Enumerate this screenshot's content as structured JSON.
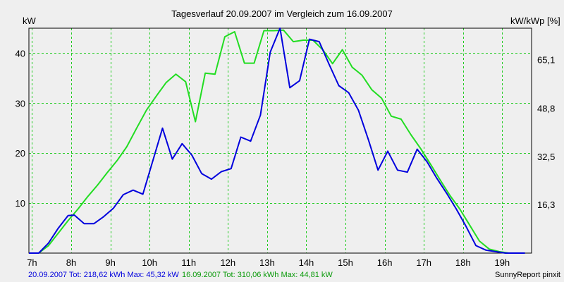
{
  "chart_data": {
    "type": "line",
    "title": "Tagesverlauf 20.09.2007 im Vergleich zum 16.09.2007",
    "ylabel_left": "kW",
    "ylabel_right": "kW/kWp [%]",
    "xlim": [
      6.92,
      19.75
    ],
    "ylim": [
      0,
      45
    ],
    "x_ticks": [
      {
        "value": 7,
        "label": "7h"
      },
      {
        "value": 8,
        "label": "8h"
      },
      {
        "value": 9,
        "label": "9h"
      },
      {
        "value": 10,
        "label": "10h"
      },
      {
        "value": 11,
        "label": "11h"
      },
      {
        "value": 12,
        "label": "12h"
      },
      {
        "value": 13,
        "label": "13h"
      },
      {
        "value": 14,
        "label": "14h"
      },
      {
        "value": 15,
        "label": "15h"
      },
      {
        "value": 16,
        "label": "16h"
      },
      {
        "value": 17,
        "label": "17h"
      },
      {
        "value": 18,
        "label": "18h"
      },
      {
        "value": 19,
        "label": "19h"
      }
    ],
    "y_ticks_left": [
      {
        "value": 10,
        "label": "10"
      },
      {
        "value": 20,
        "label": "20"
      },
      {
        "value": 30,
        "label": "30"
      },
      {
        "value": 40,
        "label": "40"
      }
    ],
    "y_ticks_right": [
      {
        "value": 9.7,
        "label": "16,3"
      },
      {
        "value": 19.3,
        "label": "32,5"
      },
      {
        "value": 29,
        "label": "48,8"
      },
      {
        "value": 38.7,
        "label": "65,1"
      }
    ],
    "grid": true,
    "series": [
      {
        "name": "20.09.2007",
        "color": "#0000dd",
        "points": [
          [
            6.92,
            0
          ],
          [
            7.17,
            0
          ],
          [
            7.42,
            2
          ],
          [
            7.67,
            5
          ],
          [
            7.92,
            7.5
          ],
          [
            8.08,
            7.6
          ],
          [
            8.33,
            5.9
          ],
          [
            8.58,
            5.9
          ],
          [
            8.83,
            7.3
          ],
          [
            9.08,
            9
          ],
          [
            9.33,
            11.7
          ],
          [
            9.58,
            12.6
          ],
          [
            9.83,
            11.8
          ],
          [
            10.08,
            18.4
          ],
          [
            10.33,
            25
          ],
          [
            10.58,
            18.8
          ],
          [
            10.83,
            21.9
          ],
          [
            11.08,
            19.6
          ],
          [
            11.33,
            15.9
          ],
          [
            11.58,
            14.8
          ],
          [
            11.83,
            16.3
          ],
          [
            12.08,
            16.9
          ],
          [
            12.33,
            23.2
          ],
          [
            12.58,
            22.4
          ],
          [
            12.83,
            27.6
          ],
          [
            13.08,
            40.2
          ],
          [
            13.33,
            45
          ],
          [
            13.58,
            33.1
          ],
          [
            13.83,
            34.5
          ],
          [
            14.08,
            42.8
          ],
          [
            14.33,
            42.3
          ],
          [
            14.58,
            37.8
          ],
          [
            14.83,
            33.5
          ],
          [
            15.08,
            32.1
          ],
          [
            15.33,
            28.6
          ],
          [
            15.58,
            22.8
          ],
          [
            15.83,
            16.6
          ],
          [
            16.08,
            20.4
          ],
          [
            16.33,
            16.6
          ],
          [
            16.58,
            16.2
          ],
          [
            16.83,
            20.8
          ],
          [
            17.08,
            18.3
          ],
          [
            17.33,
            15
          ],
          [
            17.58,
            12
          ],
          [
            17.83,
            8.8
          ],
          [
            18.08,
            5.3
          ],
          [
            18.33,
            1.5
          ],
          [
            18.58,
            0.6
          ],
          [
            18.83,
            0.3
          ],
          [
            19.08,
            0
          ],
          [
            19.58,
            0
          ]
        ]
      },
      {
        "name": "16.09.2007",
        "color": "#22dd22",
        "points": [
          [
            6.92,
            0
          ],
          [
            7.17,
            0
          ],
          [
            7.42,
            1.5
          ],
          [
            7.67,
            4
          ],
          [
            7.92,
            6.5
          ],
          [
            8.17,
            8.8
          ],
          [
            8.42,
            11.3
          ],
          [
            8.67,
            13.6
          ],
          [
            8.92,
            16.1
          ],
          [
            9.17,
            18.5
          ],
          [
            9.42,
            21.3
          ],
          [
            9.67,
            25
          ],
          [
            9.92,
            28.6
          ],
          [
            10.17,
            31.4
          ],
          [
            10.42,
            34.1
          ],
          [
            10.67,
            35.8
          ],
          [
            10.92,
            34.3
          ],
          [
            11.17,
            26.3
          ],
          [
            11.42,
            36
          ],
          [
            11.67,
            35.8
          ],
          [
            11.92,
            43.3
          ],
          [
            12.17,
            44.3
          ],
          [
            12.42,
            38
          ],
          [
            12.67,
            38
          ],
          [
            12.92,
            44.5
          ],
          [
            13.17,
            44.5
          ],
          [
            13.42,
            44.6
          ],
          [
            13.67,
            42.3
          ],
          [
            13.92,
            42.6
          ],
          [
            14.17,
            42.6
          ],
          [
            14.42,
            40.7
          ],
          [
            14.67,
            37.9
          ],
          [
            14.92,
            40.7
          ],
          [
            15.17,
            37.2
          ],
          [
            15.42,
            35.6
          ],
          [
            15.67,
            32.7
          ],
          [
            15.92,
            31
          ],
          [
            16.17,
            27.4
          ],
          [
            16.42,
            26.8
          ],
          [
            16.67,
            23.7
          ],
          [
            16.92,
            20.9
          ],
          [
            17.17,
            17.8
          ],
          [
            17.42,
            14.6
          ],
          [
            17.67,
            11.5
          ],
          [
            17.92,
            8.8
          ],
          [
            18.17,
            5.6
          ],
          [
            18.42,
            2.4
          ],
          [
            18.67,
            0.8
          ],
          [
            18.92,
            0.3
          ],
          [
            19.17,
            0
          ],
          [
            19.58,
            0
          ]
        ]
      }
    ],
    "footer": {
      "series1": "20.09.2007 Tot: 218,62 kWh Max: 45,32 kW",
      "series2": "16.09.2007 Tot: 310,06 kWh Max: 44,81 kW",
      "credit": "SunnyReport pinxit"
    }
  }
}
